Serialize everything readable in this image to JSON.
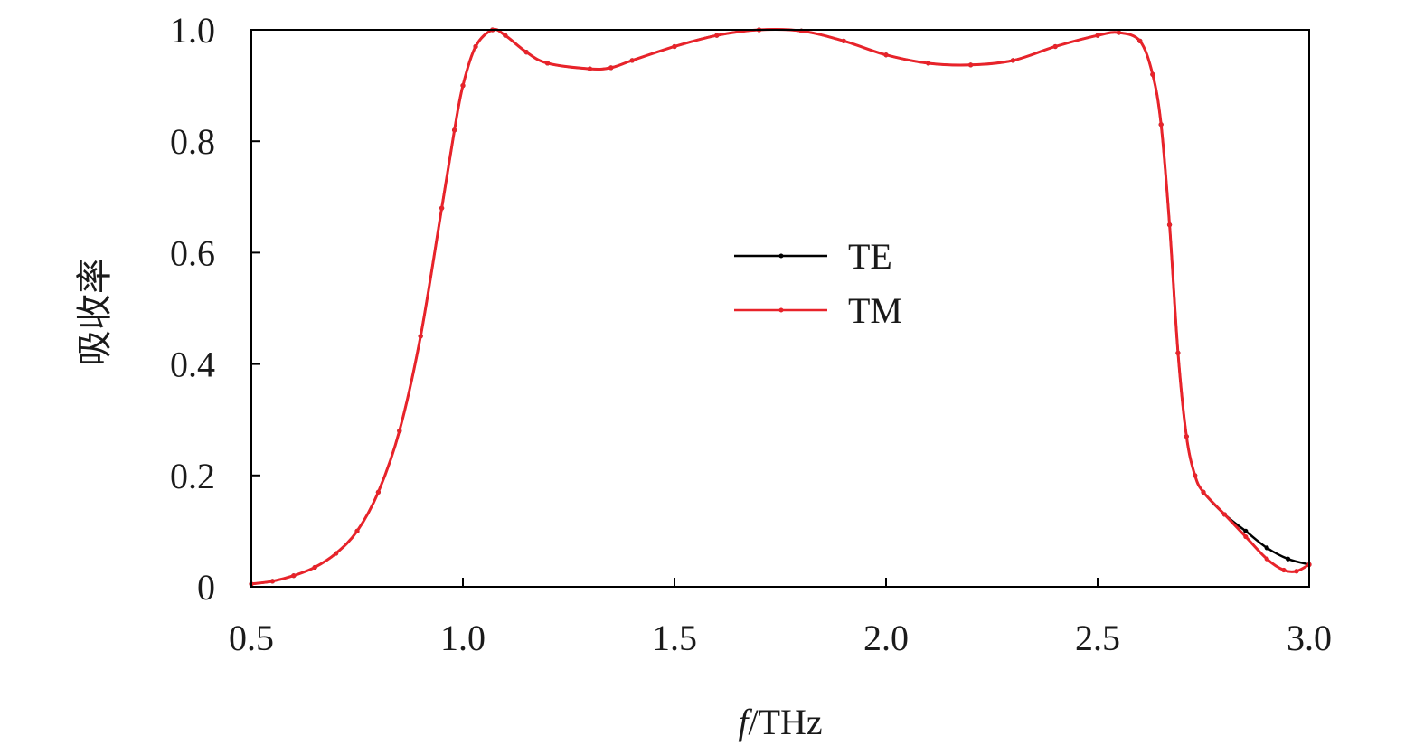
{
  "chart_data": {
    "type": "line",
    "xlabel_italic": "f",
    "xlabel_rest": "/THz",
    "ylabel": "吸收率",
    "xlim": [
      0.5,
      3.0
    ],
    "ylim": [
      0,
      1.0
    ],
    "xticks": [
      0.5,
      1.0,
      1.5,
      2.0,
      2.5,
      3.0
    ],
    "xtick_labels": [
      "0.5",
      "1.0",
      "1.5",
      "2.0",
      "2.5",
      "3.0"
    ],
    "yticks": [
      0,
      0.2,
      0.4,
      0.6,
      0.8,
      1.0
    ],
    "ytick_labels": [
      "0",
      "0.2",
      "0.4",
      "0.6",
      "0.8",
      "1.0"
    ],
    "grid": false,
    "legend_position": "center",
    "series": [
      {
        "name": "TE",
        "color": "#000000",
        "points": [
          [
            0.5,
            0.005
          ],
          [
            0.55,
            0.01
          ],
          [
            0.6,
            0.02
          ],
          [
            0.65,
            0.035
          ],
          [
            0.7,
            0.06
          ],
          [
            0.75,
            0.1
          ],
          [
            0.8,
            0.17
          ],
          [
            0.85,
            0.28
          ],
          [
            0.9,
            0.45
          ],
          [
            0.95,
            0.68
          ],
          [
            0.98,
            0.82
          ],
          [
            1.0,
            0.9
          ],
          [
            1.03,
            0.97
          ],
          [
            1.07,
            1.0
          ],
          [
            1.1,
            0.99
          ],
          [
            1.15,
            0.96
          ],
          [
            1.2,
            0.94
          ],
          [
            1.3,
            0.93
          ],
          [
            1.35,
            0.932
          ],
          [
            1.4,
            0.945
          ],
          [
            1.5,
            0.97
          ],
          [
            1.6,
            0.99
          ],
          [
            1.7,
            1.0
          ],
          [
            1.8,
            0.998
          ],
          [
            1.9,
            0.98
          ],
          [
            2.0,
            0.955
          ],
          [
            2.1,
            0.94
          ],
          [
            2.2,
            0.937
          ],
          [
            2.3,
            0.945
          ],
          [
            2.4,
            0.97
          ],
          [
            2.5,
            0.99
          ],
          [
            2.55,
            0.995
          ],
          [
            2.6,
            0.98
          ],
          [
            2.63,
            0.92
          ],
          [
            2.65,
            0.83
          ],
          [
            2.67,
            0.65
          ],
          [
            2.69,
            0.42
          ],
          [
            2.71,
            0.27
          ],
          [
            2.73,
            0.2
          ],
          [
            2.75,
            0.17
          ],
          [
            2.8,
            0.13
          ],
          [
            2.85,
            0.1
          ],
          [
            2.9,
            0.07
          ],
          [
            2.95,
            0.05
          ],
          [
            3.0,
            0.04
          ]
        ]
      },
      {
        "name": "TM",
        "color": "#e8232a",
        "points": [
          [
            0.5,
            0.005
          ],
          [
            0.55,
            0.01
          ],
          [
            0.6,
            0.02
          ],
          [
            0.65,
            0.035
          ],
          [
            0.7,
            0.06
          ],
          [
            0.75,
            0.1
          ],
          [
            0.8,
            0.17
          ],
          [
            0.85,
            0.28
          ],
          [
            0.9,
            0.45
          ],
          [
            0.95,
            0.68
          ],
          [
            0.98,
            0.82
          ],
          [
            1.0,
            0.9
          ],
          [
            1.03,
            0.97
          ],
          [
            1.07,
            1.0
          ],
          [
            1.1,
            0.99
          ],
          [
            1.15,
            0.96
          ],
          [
            1.2,
            0.94
          ],
          [
            1.3,
            0.93
          ],
          [
            1.35,
            0.932
          ],
          [
            1.4,
            0.945
          ],
          [
            1.5,
            0.97
          ],
          [
            1.6,
            0.99
          ],
          [
            1.7,
            1.0
          ],
          [
            1.8,
            0.998
          ],
          [
            1.9,
            0.98
          ],
          [
            2.0,
            0.955
          ],
          [
            2.1,
            0.94
          ],
          [
            2.2,
            0.937
          ],
          [
            2.3,
            0.945
          ],
          [
            2.4,
            0.97
          ],
          [
            2.5,
            0.99
          ],
          [
            2.55,
            0.995
          ],
          [
            2.6,
            0.98
          ],
          [
            2.63,
            0.92
          ],
          [
            2.65,
            0.83
          ],
          [
            2.67,
            0.65
          ],
          [
            2.69,
            0.42
          ],
          [
            2.71,
            0.27
          ],
          [
            2.73,
            0.2
          ],
          [
            2.75,
            0.17
          ],
          [
            2.8,
            0.13
          ],
          [
            2.85,
            0.09
          ],
          [
            2.9,
            0.05
          ],
          [
            2.94,
            0.03
          ],
          [
            2.97,
            0.028
          ],
          [
            3.0,
            0.04
          ]
        ]
      }
    ]
  }
}
